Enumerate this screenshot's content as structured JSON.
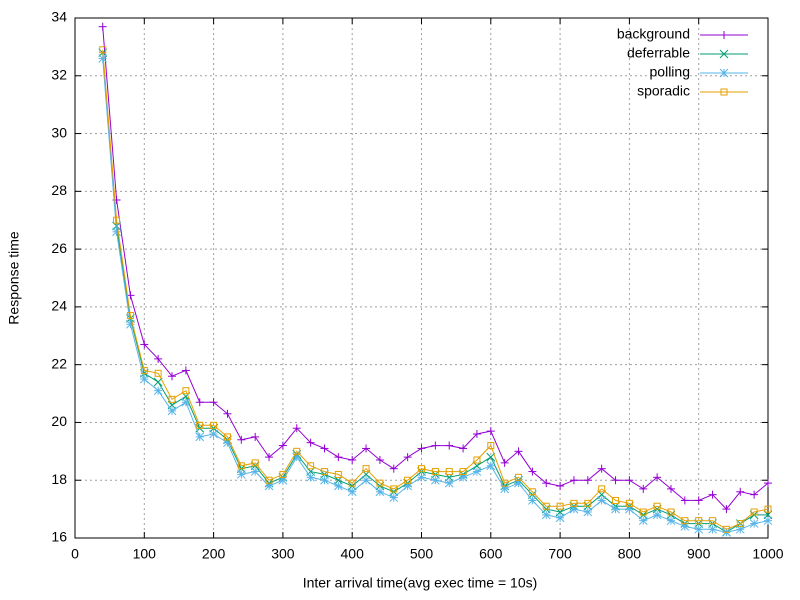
{
  "chart_data": {
    "type": "line",
    "xlabel": "Inter arrival time(avg exec time = 10s)",
    "ylabel": "Response time",
    "x": [
      40,
      60,
      80,
      100,
      120,
      140,
      160,
      180,
      200,
      220,
      240,
      260,
      280,
      300,
      320,
      340,
      360,
      380,
      400,
      420,
      440,
      460,
      480,
      500,
      520,
      540,
      560,
      580,
      600,
      620,
      640,
      660,
      680,
      700,
      720,
      740,
      760,
      780,
      800,
      820,
      840,
      860,
      880,
      900,
      920,
      940,
      960,
      980,
      1000
    ],
    "series": [
      {
        "name": "background",
        "color": "#9400d3",
        "marker": "plus",
        "values": [
          33.7,
          27.7,
          24.4,
          22.7,
          22.2,
          21.6,
          21.8,
          20.7,
          20.7,
          20.3,
          19.4,
          19.5,
          18.8,
          19.2,
          19.8,
          19.3,
          19.1,
          18.8,
          18.7,
          19.1,
          18.7,
          18.4,
          18.8,
          19.1,
          19.2,
          19.2,
          19.1,
          19.6,
          19.7,
          18.6,
          19.0,
          18.3,
          17.9,
          17.8,
          18.0,
          18.0,
          18.4,
          18.0,
          18.0,
          17.7,
          18.1,
          17.7,
          17.3,
          17.3,
          17.5,
          17.0,
          17.6,
          17.5,
          17.9
        ]
      },
      {
        "name": "deferrable",
        "color": "#009e73",
        "marker": "cross",
        "values": [
          32.8,
          26.8,
          23.6,
          21.7,
          21.4,
          20.6,
          20.9,
          19.8,
          19.8,
          19.4,
          18.4,
          18.5,
          17.9,
          18.1,
          18.9,
          18.3,
          18.2,
          18.0,
          17.8,
          18.2,
          17.8,
          17.6,
          17.9,
          18.3,
          18.2,
          18.1,
          18.2,
          18.5,
          18.8,
          17.8,
          18.0,
          17.5,
          17.0,
          16.9,
          17.1,
          17.1,
          17.5,
          17.1,
          17.1,
          16.8,
          17.0,
          16.8,
          16.5,
          16.5,
          16.5,
          16.2,
          16.5,
          16.8,
          16.8
        ]
      },
      {
        "name": "polling",
        "color": "#56b4e9",
        "marker": "star",
        "values": [
          32.6,
          26.6,
          23.4,
          21.5,
          21.1,
          20.4,
          20.7,
          19.5,
          19.6,
          19.3,
          18.2,
          18.3,
          17.8,
          18.0,
          18.8,
          18.1,
          18.0,
          17.8,
          17.6,
          18.0,
          17.6,
          17.4,
          17.8,
          18.1,
          18.0,
          17.9,
          18.1,
          18.3,
          18.5,
          17.7,
          17.9,
          17.3,
          16.8,
          16.7,
          17.0,
          16.9,
          17.3,
          17.0,
          17.0,
          16.6,
          16.8,
          16.6,
          16.4,
          16.3,
          16.3,
          16.2,
          16.3,
          16.5,
          16.6
        ]
      },
      {
        "name": "sporadic",
        "color": "#e69f00",
        "marker": "square",
        "values": [
          32.9,
          27.0,
          23.7,
          21.8,
          21.7,
          20.8,
          21.1,
          19.9,
          19.9,
          19.5,
          18.5,
          18.6,
          18.0,
          18.2,
          19.0,
          18.5,
          18.3,
          18.2,
          17.9,
          18.4,
          17.9,
          17.7,
          18.0,
          18.4,
          18.3,
          18.3,
          18.3,
          18.7,
          19.2,
          17.9,
          18.1,
          17.6,
          17.1,
          17.1,
          17.2,
          17.2,
          17.7,
          17.3,
          17.2,
          16.9,
          17.1,
          16.9,
          16.6,
          16.6,
          16.6,
          16.3,
          16.5,
          16.9,
          17.0
        ]
      }
    ],
    "xlim": [
      0,
      1000
    ],
    "xticks": [
      0,
      100,
      200,
      300,
      400,
      500,
      600,
      700,
      800,
      900,
      1000
    ],
    "ylim": [
      16,
      34
    ],
    "yticks": [
      16,
      18,
      20,
      22,
      24,
      26,
      28,
      30,
      32,
      34
    ],
    "grid": true,
    "legend": "top-right"
  }
}
